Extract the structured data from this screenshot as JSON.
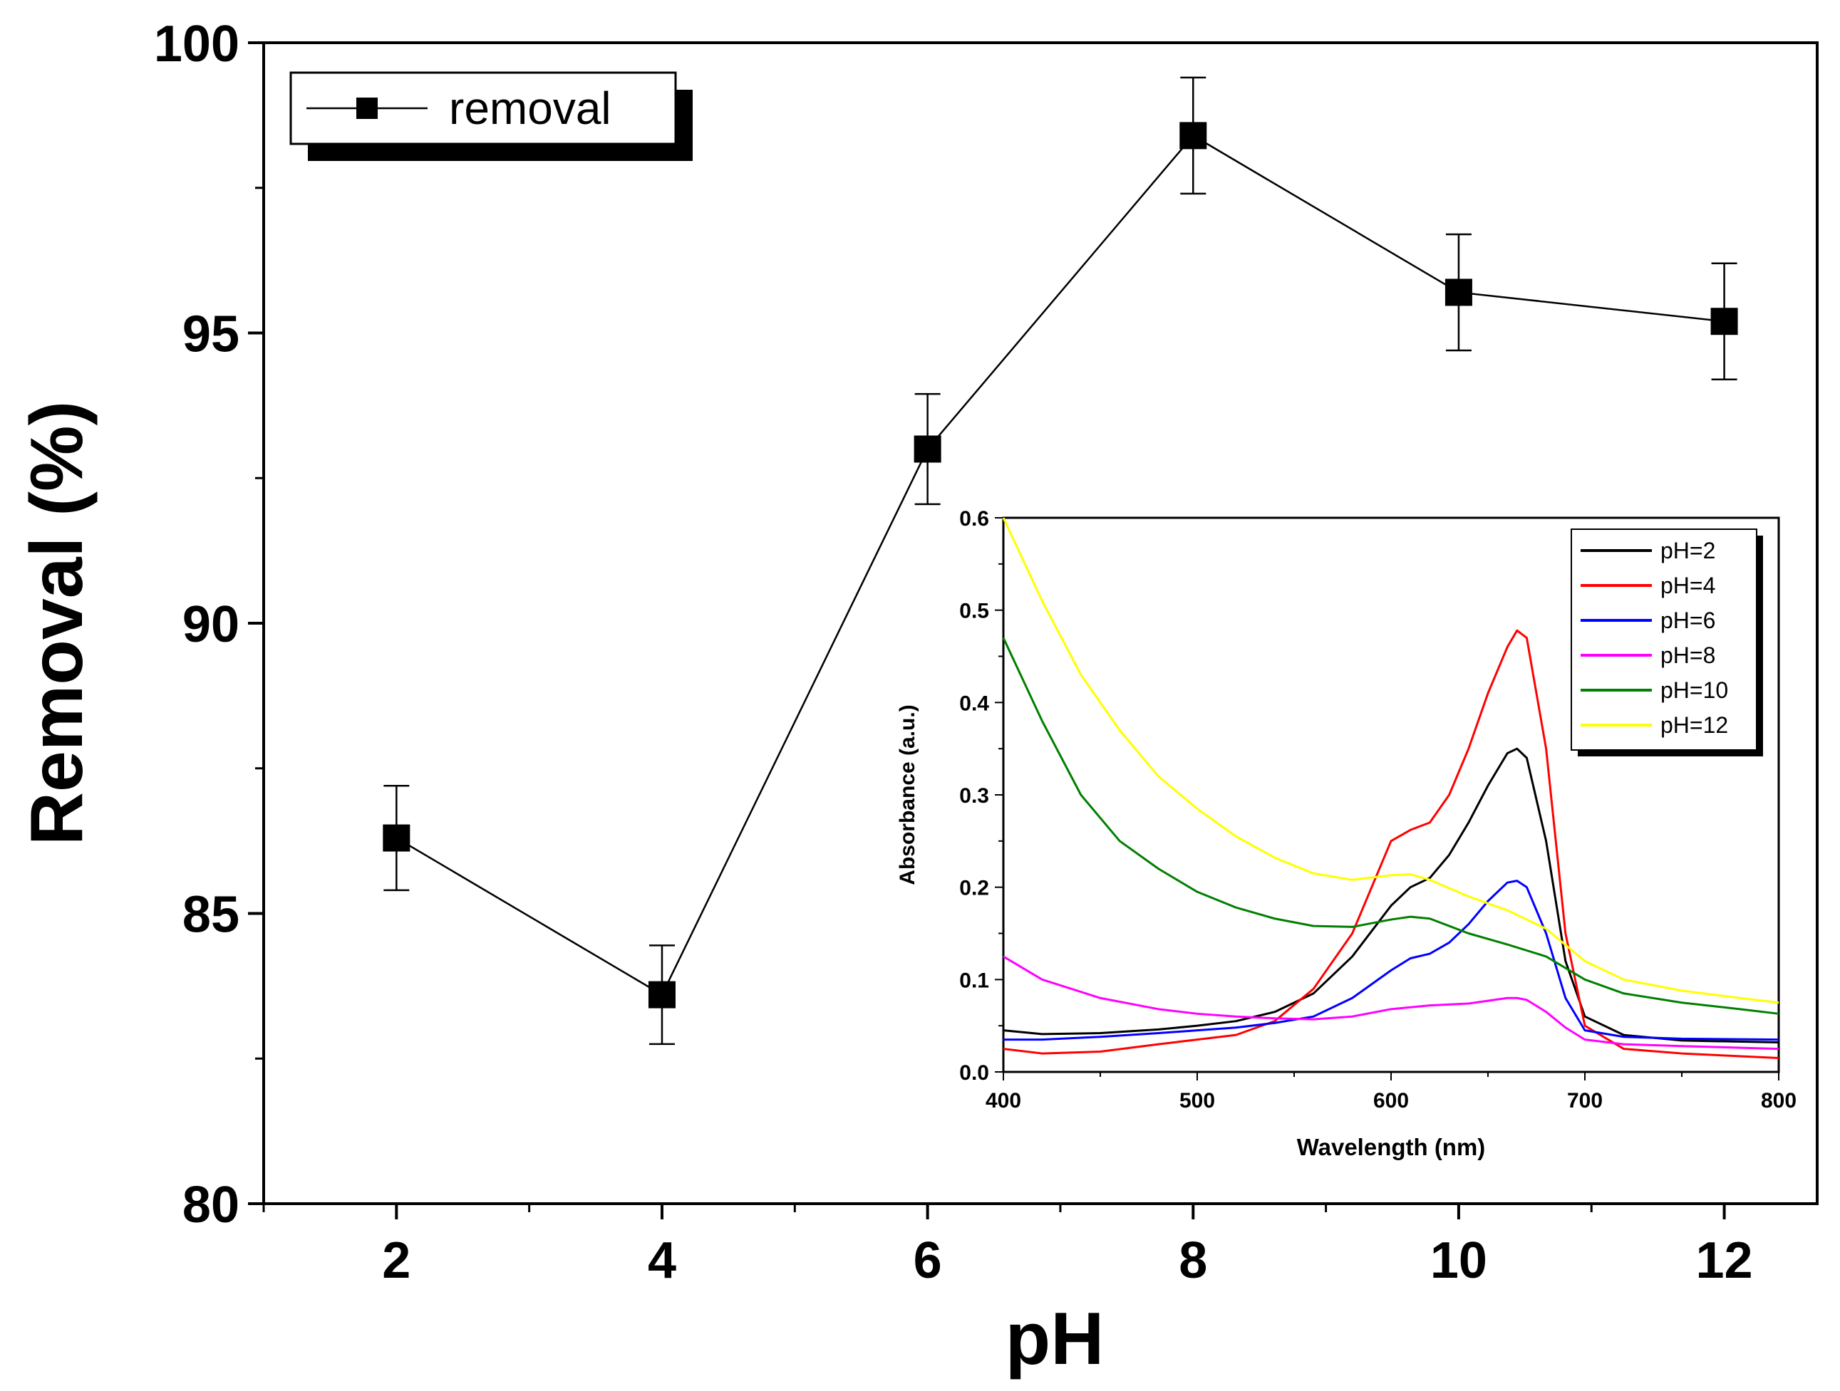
{
  "chart_data": [
    {
      "type": "line",
      "xlabel": "pH",
      "ylabel": "Removal (%)",
      "xlim": [
        1.0,
        12.7
      ],
      "ylim": [
        80,
        100
      ],
      "xticks": [
        2,
        4,
        6,
        8,
        10,
        12
      ],
      "xtick_labels": [
        "2",
        "4",
        "6",
        "8",
        "10",
        "12"
      ],
      "yticks": [
        80,
        85,
        90,
        95,
        100
      ],
      "ytick_labels": [
        "80",
        "85",
        "90",
        "95",
        "100"
      ],
      "grid": false,
      "legend_position": "top-left",
      "series": [
        {
          "name": "removal",
          "color": "#000000",
          "marker": "square",
          "x": [
            2,
            4,
            6,
            8,
            10,
            12
          ],
          "y": [
            86.3,
            83.6,
            93.0,
            98.4,
            95.7,
            95.2
          ],
          "error": [
            0.9,
            0.85,
            0.95,
            1.0,
            1.0,
            1.0
          ]
        }
      ]
    },
    {
      "type": "line",
      "xlabel": "Wavelength (nm)",
      "ylabel": "Absorbance (a.u.)",
      "xlim": [
        400,
        800
      ],
      "ylim": [
        0,
        0.6
      ],
      "xticks": [
        400,
        500,
        600,
        700,
        800
      ],
      "xtick_labels": [
        "400",
        "500",
        "600",
        "700",
        "800"
      ],
      "yticks": [
        0.0,
        0.1,
        0.2,
        0.3,
        0.4,
        0.5,
        0.6
      ],
      "ytick_labels": [
        "0.0",
        "0.1",
        "0.2",
        "0.3",
        "0.4",
        "0.5",
        "0.6"
      ],
      "grid": false,
      "legend_position": "top-right",
      "series": [
        {
          "name": "pH=2",
          "color": "#000000",
          "x": [
            400,
            420,
            450,
            480,
            500,
            520,
            540,
            560,
            580,
            600,
            610,
            620,
            630,
            640,
            650,
            660,
            665,
            670,
            680,
            690,
            700,
            720,
            750,
            800
          ],
          "y": [
            0.045,
            0.041,
            0.042,
            0.046,
            0.05,
            0.055,
            0.065,
            0.085,
            0.125,
            0.18,
            0.2,
            0.21,
            0.235,
            0.27,
            0.31,
            0.345,
            0.35,
            0.34,
            0.25,
            0.12,
            0.06,
            0.04,
            0.034,
            0.032
          ]
        },
        {
          "name": "pH=4",
          "color": "#ff0000",
          "x": [
            400,
            420,
            450,
            480,
            500,
            520,
            540,
            560,
            580,
            590,
            600,
            610,
            620,
            630,
            640,
            650,
            660,
            665,
            670,
            680,
            690,
            700,
            720,
            750,
            800
          ],
          "y": [
            0.025,
            0.02,
            0.022,
            0.03,
            0.035,
            0.04,
            0.055,
            0.09,
            0.15,
            0.2,
            0.25,
            0.262,
            0.27,
            0.3,
            0.35,
            0.41,
            0.46,
            0.478,
            0.47,
            0.35,
            0.15,
            0.05,
            0.025,
            0.02,
            0.015
          ]
        },
        {
          "name": "pH=6",
          "color": "#0000ff",
          "x": [
            400,
            420,
            450,
            480,
            500,
            520,
            540,
            560,
            580,
            600,
            610,
            620,
            630,
            640,
            650,
            660,
            665,
            670,
            680,
            690,
            700,
            720,
            750,
            800
          ],
          "y": [
            0.035,
            0.035,
            0.038,
            0.042,
            0.045,
            0.048,
            0.053,
            0.06,
            0.08,
            0.11,
            0.123,
            0.128,
            0.14,
            0.16,
            0.185,
            0.205,
            0.207,
            0.2,
            0.15,
            0.08,
            0.045,
            0.038,
            0.036,
            0.035
          ]
        },
        {
          "name": "pH=8",
          "color": "#ff00ff",
          "x": [
            400,
            420,
            450,
            480,
            500,
            520,
            540,
            560,
            580,
            600,
            620,
            640,
            660,
            665,
            670,
            680,
            690,
            700,
            720,
            750,
            800
          ],
          "y": [
            0.125,
            0.1,
            0.08,
            0.068,
            0.063,
            0.06,
            0.058,
            0.057,
            0.06,
            0.068,
            0.072,
            0.074,
            0.08,
            0.08,
            0.078,
            0.065,
            0.048,
            0.035,
            0.03,
            0.028,
            0.025
          ]
        },
        {
          "name": "pH=10",
          "color": "#008000",
          "x": [
            400,
            420,
            440,
            460,
            480,
            500,
            520,
            540,
            560,
            580,
            600,
            610,
            620,
            640,
            660,
            680,
            700,
            720,
            750,
            780,
            800
          ],
          "y": [
            0.47,
            0.38,
            0.3,
            0.25,
            0.22,
            0.195,
            0.178,
            0.166,
            0.158,
            0.157,
            0.165,
            0.168,
            0.166,
            0.15,
            0.138,
            0.125,
            0.1,
            0.085,
            0.075,
            0.068,
            0.063
          ]
        },
        {
          "name": "pH=12",
          "color": "#ffff00",
          "x": [
            400,
            420,
            440,
            460,
            480,
            500,
            520,
            540,
            560,
            580,
            600,
            610,
            620,
            640,
            660,
            680,
            700,
            720,
            750,
            780,
            800
          ],
          "y": [
            0.6,
            0.51,
            0.43,
            0.37,
            0.32,
            0.285,
            0.255,
            0.232,
            0.215,
            0.208,
            0.213,
            0.214,
            0.208,
            0.19,
            0.175,
            0.155,
            0.12,
            0.1,
            0.088,
            0.08,
            0.075
          ]
        }
      ]
    }
  ]
}
